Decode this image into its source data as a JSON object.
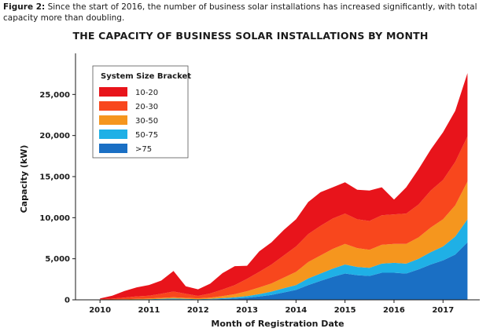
{
  "caption": {
    "label": "Figure 2:",
    "text": "Since the start of 2016, the number of business solar installations has increased significantly, with total capacity more than doubling."
  },
  "chart_data": {
    "type": "area",
    "stacked": true,
    "title": "THE CAPACITY OF BUSINESS SOLAR INSTALLATIONS BY MONTH",
    "xlabel": "Month of Registration Date",
    "ylabel": "Capacity (kW)",
    "xlim": [
      2009.5,
      2017.75
    ],
    "ylim": [
      0,
      30000
    ],
    "yticks": [
      0,
      5000,
      10000,
      15000,
      20000,
      25000
    ],
    "ytick_labels": [
      "0",
      "5,000",
      "10,000",
      "15,000",
      "20,000",
      "25,000"
    ],
    "xticks": [
      2010,
      2011,
      2012,
      2013,
      2014,
      2015,
      2016,
      2017
    ],
    "xtick_labels": [
      "2010",
      "2011",
      "2012",
      "2013",
      "2014",
      "2015",
      "2016",
      "2017"
    ],
    "grid": false,
    "legend": {
      "title": "System Size Bracket",
      "position": "top-left"
    },
    "x": [
      2010.0,
      2010.25,
      2010.5,
      2010.75,
      2011.0,
      2011.25,
      2011.5,
      2011.75,
      2012.0,
      2012.25,
      2012.5,
      2012.75,
      2013.0,
      2013.25,
      2013.5,
      2013.75,
      2014.0,
      2014.25,
      2014.5,
      2014.75,
      2015.0,
      2015.25,
      2015.5,
      2015.75,
      2016.0,
      2016.25,
      2016.5,
      2016.75,
      2017.0,
      2017.25,
      2017.5
    ],
    "series": [
      {
        "name": ">75",
        "color": "#1a6fc4",
        "values": [
          0,
          10,
          20,
          30,
          40,
          60,
          80,
          60,
          40,
          60,
          100,
          150,
          250,
          400,
          600,
          900,
          1200,
          1800,
          2300,
          2800,
          3200,
          3000,
          2900,
          3300,
          3300,
          3200,
          3700,
          4300,
          4800,
          5500,
          7000
        ]
      },
      {
        "name": "50-75",
        "color": "#1fb0e6",
        "values": [
          0,
          10,
          20,
          30,
          40,
          60,
          80,
          60,
          40,
          60,
          100,
          150,
          200,
          300,
          400,
          500,
          600,
          800,
          900,
          1000,
          1100,
          1000,
          1000,
          1100,
          1200,
          1200,
          1300,
          1500,
          1700,
          2200,
          2800
        ]
      },
      {
        "name": "30-50",
        "color": "#f5961e",
        "values": [
          20,
          30,
          40,
          60,
          80,
          120,
          150,
          120,
          100,
          150,
          250,
          400,
          600,
          800,
          1000,
          1300,
          1600,
          2000,
          2200,
          2400,
          2500,
          2300,
          2200,
          2300,
          2300,
          2400,
          2600,
          3000,
          3300,
          3800,
          4600
        ]
      },
      {
        "name": "20-30",
        "color": "#f8471d",
        "values": [
          50,
          100,
          200,
          300,
          350,
          500,
          700,
          500,
          300,
          500,
          800,
          1100,
          1500,
          1900,
          2300,
          2700,
          3100,
          3400,
          3600,
          3700,
          3700,
          3500,
          3500,
          3600,
          3600,
          3700,
          4000,
          4500,
          4800,
          5300,
          5500
        ]
      },
      {
        "name": "10-20",
        "color": "#e8141b",
        "values": [
          100,
          350,
          800,
          1100,
          1300,
          1600,
          2500,
          900,
          800,
          1200,
          2000,
          2300,
          1600,
          2500,
          2700,
          3100,
          3300,
          3900,
          4100,
          3800,
          3800,
          3600,
          3700,
          3400,
          1800,
          3200,
          4300,
          5000,
          5800,
          6200,
          7700
        ]
      }
    ]
  }
}
